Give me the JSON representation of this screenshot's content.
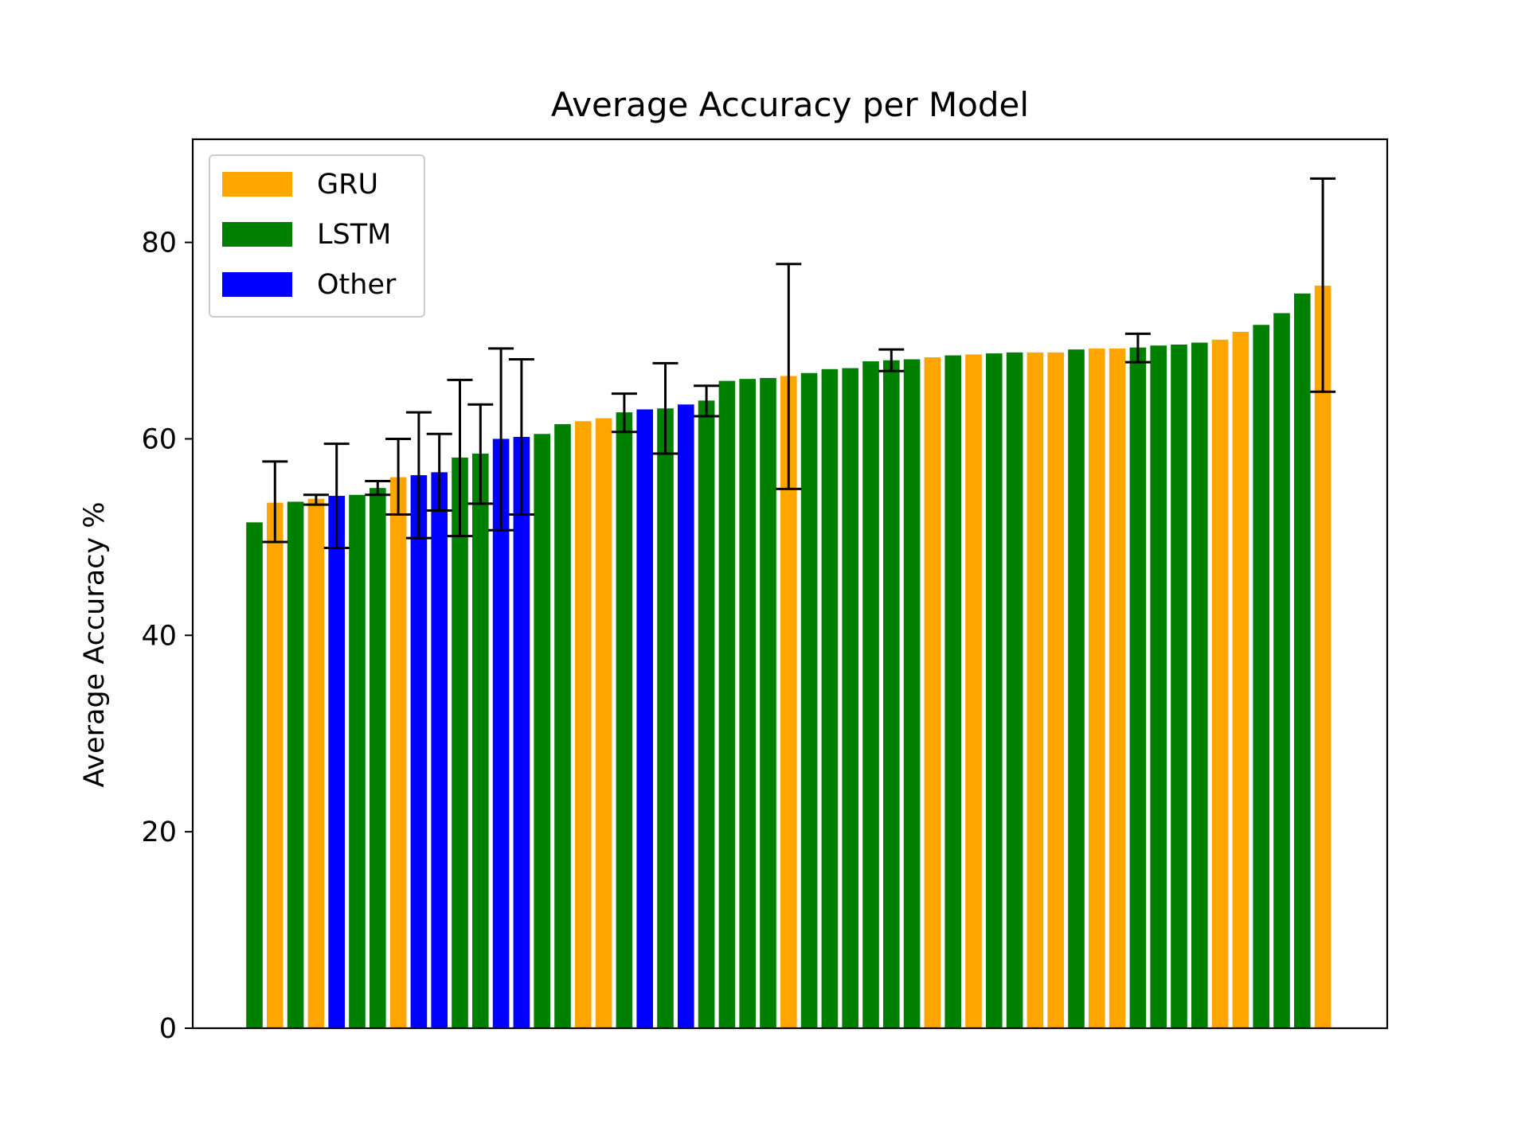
{
  "chart_data": {
    "type": "bar",
    "title": "Average Accuracy per Model",
    "xlabel": "",
    "ylabel": "Average Accuracy %",
    "ylim": [
      0,
      90.5
    ],
    "yticks": [
      0,
      20,
      40,
      60,
      80
    ],
    "grid": false,
    "legend_position": "top-left",
    "legend": [
      {
        "name": "GRU",
        "color": "#FFA500"
      },
      {
        "name": "LSTM",
        "color": "#008000"
      },
      {
        "name": "Other",
        "color": "#0000FF"
      }
    ],
    "bars": [
      {
        "model": "LSTM",
        "value": 51.5,
        "err": null
      },
      {
        "model": "GRU",
        "value": 53.5,
        "err": [
          49.5,
          57.7
        ]
      },
      {
        "model": "LSTM",
        "value": 53.6,
        "err": null
      },
      {
        "model": "GRU",
        "value": 53.9,
        "err": [
          53.3,
          54.3
        ]
      },
      {
        "model": "Other",
        "value": 54.2,
        "err": [
          48.9,
          59.5
        ]
      },
      {
        "model": "LSTM",
        "value": 54.3,
        "err": null
      },
      {
        "model": "LSTM",
        "value": 55.0,
        "err": [
          54.3,
          55.7
        ]
      },
      {
        "model": "GRU",
        "value": 56.1,
        "err": [
          52.3,
          60.0
        ]
      },
      {
        "model": "Other",
        "value": 56.3,
        "err": [
          49.9,
          62.7
        ]
      },
      {
        "model": "Other",
        "value": 56.6,
        "err": [
          52.7,
          60.5
        ]
      },
      {
        "model": "LSTM",
        "value": 58.1,
        "err": [
          50.1,
          66.0
        ]
      },
      {
        "model": "LSTM",
        "value": 58.5,
        "err": [
          53.4,
          63.5
        ]
      },
      {
        "model": "Other",
        "value": 60.0,
        "err": [
          50.7,
          69.2
        ]
      },
      {
        "model": "Other",
        "value": 60.2,
        "err": [
          52.3,
          68.1
        ]
      },
      {
        "model": "LSTM",
        "value": 60.5,
        "err": null
      },
      {
        "model": "LSTM",
        "value": 61.5,
        "err": null
      },
      {
        "model": "GRU",
        "value": 61.8,
        "err": null
      },
      {
        "model": "GRU",
        "value": 62.1,
        "err": null
      },
      {
        "model": "LSTM",
        "value": 62.7,
        "err": [
          60.7,
          64.6
        ]
      },
      {
        "model": "Other",
        "value": 63.0,
        "err": null
      },
      {
        "model": "LSTM",
        "value": 63.1,
        "err": [
          58.5,
          67.7
        ]
      },
      {
        "model": "Other",
        "value": 63.5,
        "err": null
      },
      {
        "model": "LSTM",
        "value": 63.9,
        "err": [
          62.3,
          65.4
        ]
      },
      {
        "model": "LSTM",
        "value": 65.9,
        "err": null
      },
      {
        "model": "LSTM",
        "value": 66.1,
        "err": null
      },
      {
        "model": "LSTM",
        "value": 66.2,
        "err": null
      },
      {
        "model": "GRU",
        "value": 66.4,
        "err": [
          54.9,
          77.8
        ]
      },
      {
        "model": "LSTM",
        "value": 66.7,
        "err": null
      },
      {
        "model": "LSTM",
        "value": 67.1,
        "err": null
      },
      {
        "model": "LSTM",
        "value": 67.2,
        "err": null
      },
      {
        "model": "LSTM",
        "value": 67.9,
        "err": null
      },
      {
        "model": "LSTM",
        "value": 68.0,
        "err": [
          66.9,
          69.1
        ]
      },
      {
        "model": "LSTM",
        "value": 68.1,
        "err": null
      },
      {
        "model": "GRU",
        "value": 68.3,
        "err": null
      },
      {
        "model": "LSTM",
        "value": 68.5,
        "err": null
      },
      {
        "model": "GRU",
        "value": 68.6,
        "err": null
      },
      {
        "model": "LSTM",
        "value": 68.7,
        "err": null
      },
      {
        "model": "LSTM",
        "value": 68.8,
        "err": null
      },
      {
        "model": "GRU",
        "value": 68.8,
        "err": null
      },
      {
        "model": "GRU",
        "value": 68.8,
        "err": null
      },
      {
        "model": "LSTM",
        "value": 69.1,
        "err": null
      },
      {
        "model": "GRU",
        "value": 69.2,
        "err": null
      },
      {
        "model": "GRU",
        "value": 69.2,
        "err": null
      },
      {
        "model": "LSTM",
        "value": 69.3,
        "err": [
          67.8,
          70.7
        ]
      },
      {
        "model": "LSTM",
        "value": 69.5,
        "err": null
      },
      {
        "model": "LSTM",
        "value": 69.6,
        "err": null
      },
      {
        "model": "LSTM",
        "value": 69.8,
        "err": null
      },
      {
        "model": "GRU",
        "value": 70.1,
        "err": null
      },
      {
        "model": "GRU",
        "value": 70.9,
        "err": null
      },
      {
        "model": "LSTM",
        "value": 71.6,
        "err": null
      },
      {
        "model": "LSTM",
        "value": 72.8,
        "err": null
      },
      {
        "model": "LSTM",
        "value": 74.8,
        "err": null
      },
      {
        "model": "GRU",
        "value": 75.6,
        "err": [
          64.8,
          86.5
        ]
      }
    ]
  }
}
